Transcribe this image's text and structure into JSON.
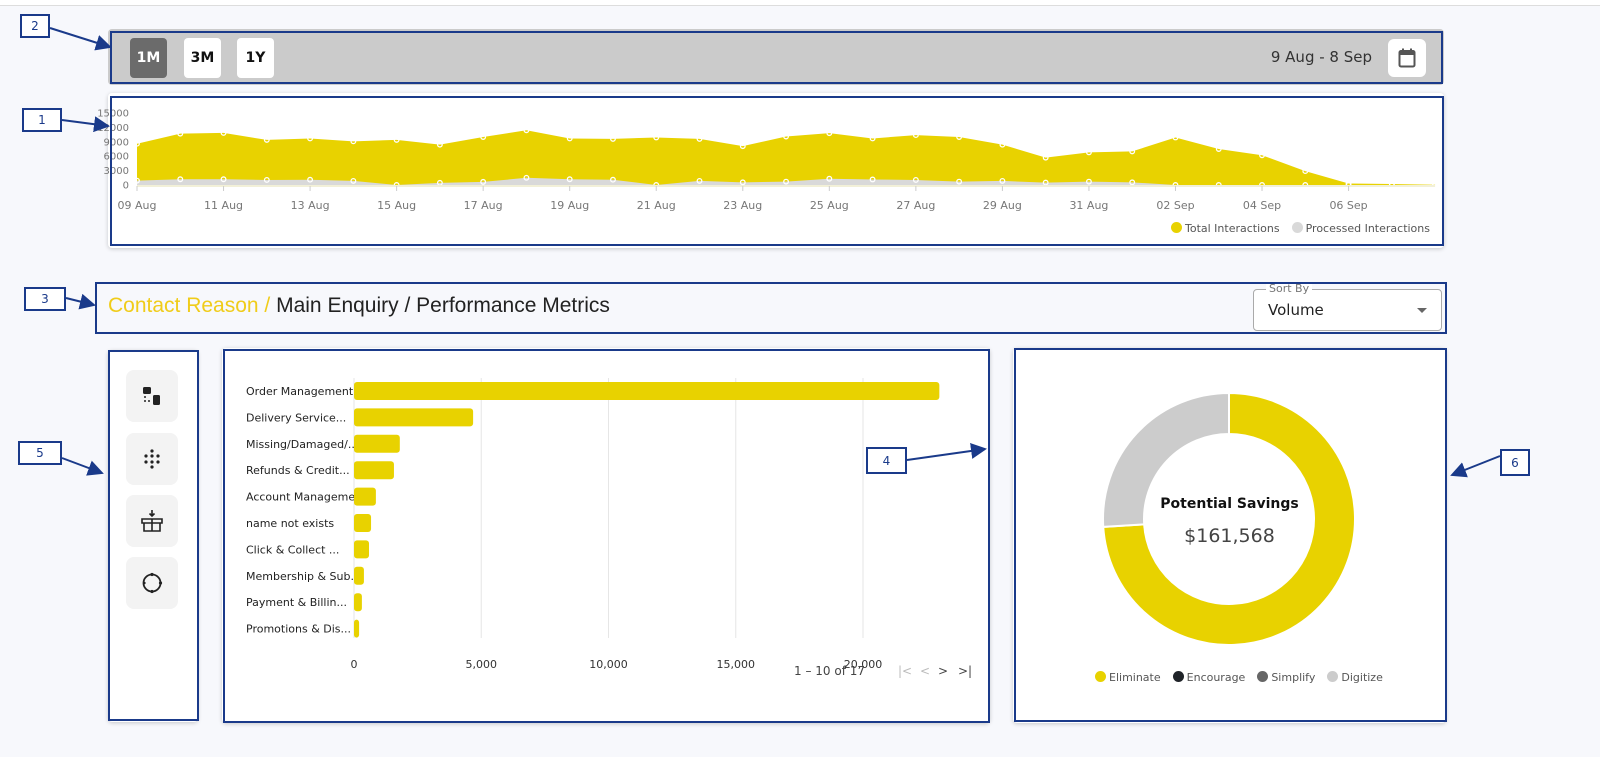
{
  "toolbar": {
    "ranges": [
      "1M",
      "3M",
      "1Y"
    ],
    "active_range": "1M",
    "date_range": "9 Aug - 8 Sep",
    "calendar_icon": "calendar-icon"
  },
  "chart_data": [
    {
      "type": "area",
      "x": [
        "09 Aug",
        "10 Aug",
        "11 Aug",
        "12 Aug",
        "13 Aug",
        "14 Aug",
        "15 Aug",
        "16 Aug",
        "17 Aug",
        "18 Aug",
        "19 Aug",
        "20 Aug",
        "21 Aug",
        "22 Aug",
        "23 Aug",
        "24 Aug",
        "25 Aug",
        "26 Aug",
        "27 Aug",
        "28 Aug",
        "29 Aug",
        "30 Aug",
        "31 Aug",
        "01 Sep",
        "02 Sep",
        "03 Sep",
        "04 Sep",
        "05 Sep",
        "06 Sep",
        "07 Sep",
        "08 Sep"
      ],
      "x_tick_labels": [
        "09 Aug",
        "11 Aug",
        "13 Aug",
        "15 Aug",
        "17 Aug",
        "19 Aug",
        "21 Aug",
        "23 Aug",
        "25 Aug",
        "27 Aug",
        "29 Aug",
        "31 Aug",
        "02 Sep",
        "04 Sep",
        "06 Sep"
      ],
      "y_tick_labels": [
        "0",
        "3000",
        "6000",
        "9000",
        "12000",
        "15000"
      ],
      "ylim": [
        0,
        15000
      ],
      "grid": false,
      "legend_position": "bottom-right",
      "series": [
        {
          "name": "Total Interactions",
          "color": "#e8d200",
          "values": [
            8600,
            10700,
            10850,
            9400,
            9700,
            9100,
            9400,
            8400,
            10000,
            11400,
            9700,
            9600,
            9900,
            9600,
            8100,
            10100,
            10800,
            9700,
            10400,
            10000,
            8400,
            5700,
            6800,
            7000,
            9900,
            7500,
            6200,
            2900,
            300,
            200,
            50
          ]
        },
        {
          "name": "Processed Interactions",
          "color": "#d9d9d9",
          "values": [
            900,
            1200,
            1200,
            1050,
            1100,
            850,
            0,
            450,
            650,
            1500,
            1200,
            1100,
            0,
            850,
            550,
            700,
            1300,
            1150,
            1050,
            700,
            850,
            500,
            700,
            550,
            0,
            0,
            0,
            0,
            0,
            0,
            0
          ]
        }
      ]
    },
    {
      "type": "bar",
      "orientation": "horizontal",
      "color": "#e8d200",
      "categories": [
        "Order Management",
        "Delivery Service...",
        "Missing/Damaged/...",
        "Refunds & Credit...",
        "Account Manageme...",
        "name not exists",
        "Click & Collect ...",
        "Membership & Sub...",
        "Payment & Billin...",
        "Promotions & Dis..."
      ],
      "values": [
        23000,
        4680,
        1800,
        1570,
        860,
        670,
        590,
        390,
        310,
        200
      ],
      "x_tick_labels": [
        "0",
        "5,000",
        "10,000",
        "15,000",
        "20,000"
      ],
      "xlim": [
        0,
        23500
      ],
      "grid": true
    },
    {
      "type": "pie",
      "donut": true,
      "center_title": "Potential Savings",
      "center_value": "$161,568",
      "legend_position": "bottom",
      "series": [
        {
          "name": "Eliminate",
          "value": 74,
          "color": "#e8d200"
        },
        {
          "name": "Encourage",
          "value": 0,
          "color": "#1f2328"
        },
        {
          "name": "Simplify",
          "value": 0,
          "color": "#666666"
        },
        {
          "name": "Digitize",
          "value": 26,
          "color": "#cccccc"
        }
      ]
    }
  ],
  "breadcrumb": {
    "part1": "Contact Reason / ",
    "part2": "Main Enquiry / Performance Metrics"
  },
  "sort": {
    "label": "Sort By",
    "value": "Volume"
  },
  "sidebar": {
    "icons": [
      "hierarchy-icon",
      "cluster-dots-icon",
      "box-download-icon",
      "cycle-icon"
    ]
  },
  "pager": {
    "text": "1 – 10 of 17",
    "first": "|<",
    "prev": "<",
    "next": ">",
    "last": ">|"
  },
  "annotations": [
    "1",
    "2",
    "3",
    "4",
    "5",
    "6"
  ]
}
